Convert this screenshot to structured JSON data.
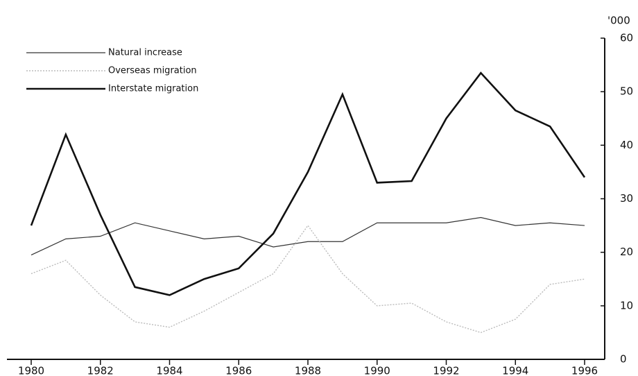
{
  "chart_data": {
    "type": "line",
    "unit": "'000",
    "x": [
      1980,
      1981,
      1982,
      1983,
      1984,
      1985,
      1986,
      1987,
      1988,
      1989,
      1990,
      1991,
      1992,
      1993,
      1994,
      1995,
      1996
    ],
    "xlim": [
      1980,
      1996
    ],
    "xticks": [
      1980,
      1982,
      1984,
      1986,
      1988,
      1990,
      1992,
      1994,
      1996
    ],
    "ylim": [
      0,
      60
    ],
    "yticks": [
      0,
      10,
      20,
      30,
      40,
      50,
      60
    ],
    "legend": "top-left",
    "series": [
      {
        "name": "Natural increase",
        "color": "#333333",
        "values": [
          19.5,
          22.5,
          23,
          25.5,
          24,
          22.5,
          23,
          21,
          22,
          22,
          25.5,
          25.5,
          25.5,
          26.5,
          25,
          25.5,
          25
        ]
      },
      {
        "name": "Overseas migration",
        "color": "#bbbbbb",
        "values": [
          16,
          18.5,
          12,
          7,
          6,
          9,
          12.5,
          16,
          25,
          16,
          10,
          10.5,
          7,
          5,
          7.5,
          14,
          15
        ]
      },
      {
        "name": "Interstate migration",
        "color": "#111111",
        "values": [
          25,
          42,
          27,
          13.5,
          12,
          15,
          17,
          23.5,
          35,
          49.5,
          33,
          33.3,
          45,
          53.5,
          46.5,
          43.5,
          34
        ]
      }
    ]
  }
}
